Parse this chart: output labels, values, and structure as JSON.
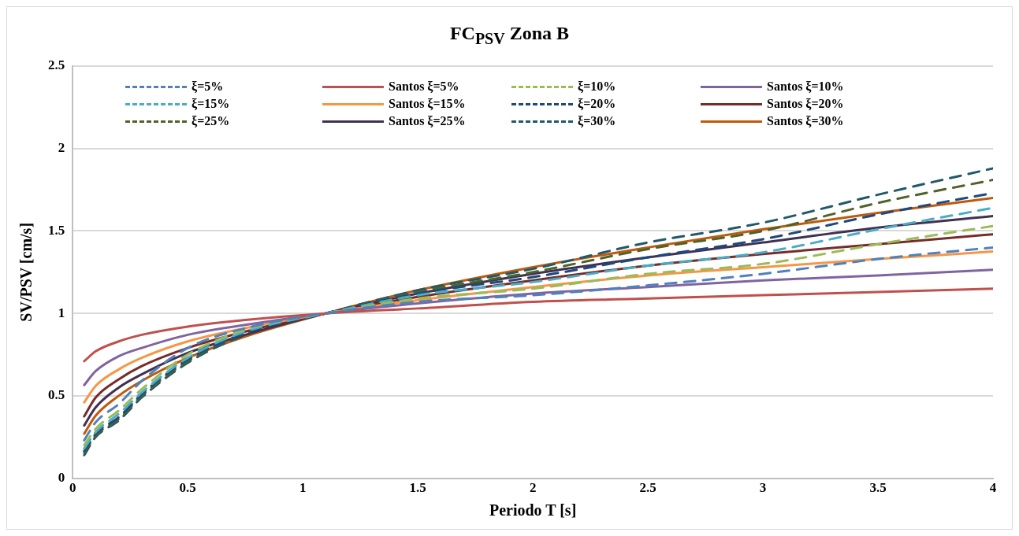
{
  "chart_data": {
    "type": "line",
    "title": "FC$_{PSV}$ Zona B",
    "xlabel": "Periodo T [s]",
    "ylabel": "SV/PSV [cm/s]",
    "x": [
      0.05,
      0.1,
      0.2,
      0.3,
      0.5,
      0.75,
      1.1,
      1.5,
      2,
      2.5,
      3,
      3.5,
      4
    ],
    "xlim": [
      0,
      4
    ],
    "xticks": [
      0,
      0.5,
      1,
      1.5,
      2,
      2.5,
      3,
      3.5,
      4
    ],
    "ylim": [
      0,
      2.5
    ],
    "yticks": [
      0,
      0.5,
      1,
      1.5,
      2,
      2.5
    ],
    "grid": "y",
    "legend": "top left",
    "series": [
      {
        "name": "ξ=5%",
        "color": "#4f81bd",
        "line_style": "dashed",
        "values": [
          0.23,
          0.34,
          0.45,
          0.59,
          0.79,
          0.91,
          1,
          1.07,
          1.11,
          1.17,
          1.24,
          1.33,
          1.4
        ]
      },
      {
        "name": "Santos ξ=5%",
        "color": "#c0504d",
        "line_style": "solid",
        "values": [
          0.71,
          0.77,
          0.83,
          0.87,
          0.92,
          0.96,
          1,
          1.03,
          1.07,
          1.09,
          1.11,
          1.13,
          1.15
        ]
      },
      {
        "name": "ξ=10%",
        "color": "#9bbb59",
        "line_style": "dashed",
        "values": [
          0.2,
          0.3,
          0.41,
          0.54,
          0.75,
          0.9,
          1,
          1.09,
          1.15,
          1.24,
          1.3,
          1.42,
          1.53
        ]
      },
      {
        "name": "Santos ξ=10%",
        "color": "#8064a2",
        "line_style": "solid",
        "values": [
          0.565,
          0.65,
          0.74,
          0.79,
          0.87,
          0.93,
          1,
          1.06,
          1.12,
          1.16,
          1.2,
          1.23,
          1.265
        ]
      },
      {
        "name": "ξ=15%",
        "color": "#4bacc6",
        "line_style": "dashed",
        "values": [
          0.18,
          0.28,
          0.39,
          0.52,
          0.73,
          0.89,
          1,
          1.11,
          1.19,
          1.29,
          1.37,
          1.51,
          1.64
        ]
      },
      {
        "name": "Santos ξ=15%",
        "color": "#f79646",
        "line_style": "solid",
        "values": [
          0.46,
          0.56,
          0.66,
          0.73,
          0.83,
          0.91,
          1,
          1.08,
          1.16,
          1.23,
          1.28,
          1.33,
          1.375
        ]
      },
      {
        "name": "ξ=20%",
        "color": "#1f497d",
        "line_style": "dashed",
        "values": [
          0.165,
          0.27,
          0.37,
          0.51,
          0.72,
          0.88,
          1,
          1.12,
          1.22,
          1.34,
          1.45,
          1.6,
          1.73
        ]
      },
      {
        "name": "Santos ξ=20%",
        "color": "#772c2a",
        "line_style": "solid",
        "values": [
          0.375,
          0.49,
          0.6,
          0.68,
          0.79,
          0.89,
          1,
          1.1,
          1.2,
          1.29,
          1.36,
          1.42,
          1.48
        ]
      },
      {
        "name": "ξ=25%",
        "color": "#4f6228",
        "line_style": "dashed",
        "values": [
          0.155,
          0.26,
          0.36,
          0.5,
          0.71,
          0.88,
          1,
          1.13,
          1.25,
          1.39,
          1.5,
          1.67,
          1.81
        ]
      },
      {
        "name": "Santos ξ=25%",
        "color": "#403152",
        "line_style": "solid",
        "values": [
          0.32,
          0.43,
          0.55,
          0.63,
          0.76,
          0.87,
          1,
          1.12,
          1.24,
          1.34,
          1.43,
          1.52,
          1.59
        ]
      },
      {
        "name": "ξ=30%",
        "color": "#215968",
        "line_style": "dashed",
        "values": [
          0.14,
          0.25,
          0.35,
          0.49,
          0.7,
          0.87,
          1,
          1.14,
          1.27,
          1.43,
          1.55,
          1.72,
          1.88
        ]
      },
      {
        "name": "Santos ξ=30%",
        "color": "#c0590e",
        "line_style": "solid",
        "values": [
          0.27,
          0.38,
          0.5,
          0.59,
          0.73,
          0.86,
          1,
          1.14,
          1.28,
          1.4,
          1.51,
          1.61,
          1.7
        ]
      }
    ]
  }
}
